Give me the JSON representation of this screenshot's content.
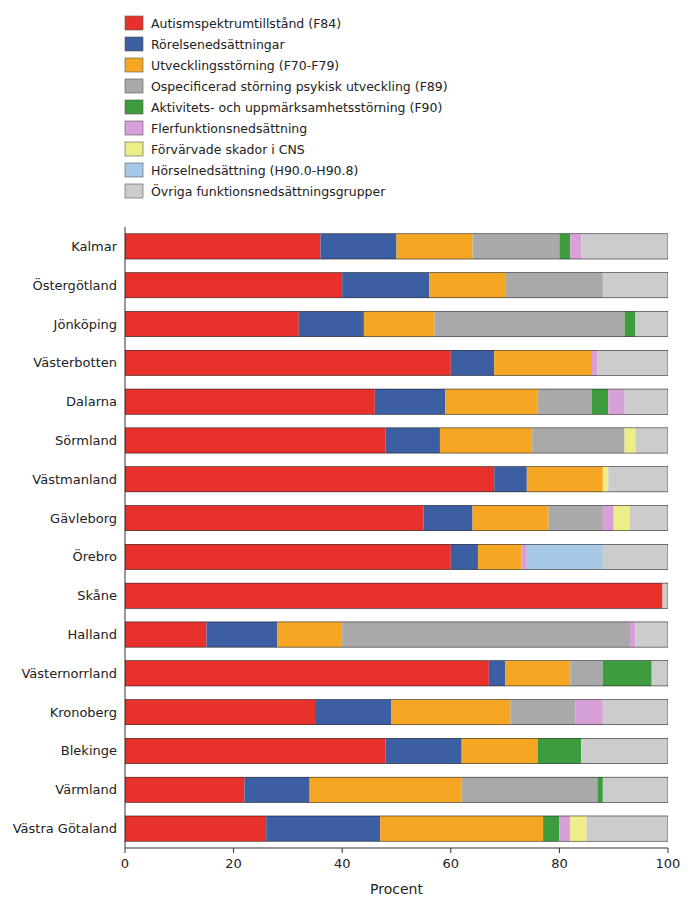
{
  "chart_data": {
    "type": "bar",
    "orientation": "horizontal",
    "stacked": true,
    "categories": [
      "Kalmar",
      "Östergötland",
      "Jönköping",
      "Västerbotten",
      "Dalarna",
      "Sörmland",
      "Västmanland",
      "Gävleborg",
      "Örebro",
      "Skåne",
      "Halland",
      "Västernorrland",
      "Kronoberg",
      "Blekinge",
      "Värmland",
      "Västra Götaland"
    ],
    "series": [
      {
        "name": "Autismspektrumtillstånd (F84)",
        "color": "#E8312A",
        "values": [
          36,
          40,
          32,
          60,
          46,
          48,
          68,
          55,
          60,
          99,
          15,
          67,
          35,
          48,
          22,
          26
        ]
      },
      {
        "name": "Rörelsenedsättningar",
        "color": "#3C5FA4",
        "values": [
          14,
          16,
          12,
          8,
          13,
          10,
          6,
          9,
          5,
          0,
          13,
          3,
          14,
          14,
          12,
          21
        ]
      },
      {
        "name": "Utvecklingsstörning (F70-F79)",
        "color": "#F5A623",
        "values": [
          14,
          14,
          13,
          18,
          17,
          17,
          14,
          14,
          8,
          0,
          12,
          12,
          22,
          14,
          28,
          30
        ]
      },
      {
        "name": "Ospecificerad störning psykisk utveckling (F89)",
        "color": "#A9A9A9",
        "values": [
          16,
          18,
          35,
          0,
          10,
          17,
          0,
          10,
          0,
          0,
          53,
          6,
          12,
          0,
          25,
          0
        ]
      },
      {
        "name": "Aktivitets- och uppmärksamhetsstörning (F90)",
        "color": "#3D9C3D",
        "values": [
          2,
          0,
          2,
          0,
          3,
          0,
          0,
          0,
          0,
          0,
          0,
          9,
          0,
          8,
          1,
          3
        ]
      },
      {
        "name": "Flerfunktionsnedsättning",
        "color": "#D8A0D8",
        "values": [
          2,
          0,
          0,
          1,
          3,
          0,
          0,
          2,
          1,
          0,
          1,
          0,
          5,
          0,
          0,
          2
        ]
      },
      {
        "name": "Förvärvade skador i CNS",
        "color": "#EEEE88",
        "values": [
          0,
          0,
          0,
          0,
          0,
          2,
          1,
          3,
          0,
          0,
          0,
          0,
          0,
          0,
          0,
          3
        ]
      },
      {
        "name": "Hörselnedsättning (H90.0-H90.8)",
        "color": "#A8C8E8",
        "values": [
          0,
          0,
          0,
          0,
          0,
          0,
          0,
          0,
          14,
          0,
          0,
          0,
          0,
          0,
          0,
          0
        ]
      },
      {
        "name": "Övriga funktionsnedsättningsgrupper",
        "color": "#CCCCCC",
        "values": [
          16,
          12,
          6,
          13,
          8,
          6,
          11,
          7,
          12,
          1,
          6,
          3,
          12,
          16,
          12,
          15
        ]
      }
    ],
    "xlabel": "Procent",
    "xlim": [
      0,
      100
    ],
    "xticks": [
      0,
      20,
      40,
      60,
      80,
      100
    ],
    "grid": false,
    "legend": "top"
  }
}
